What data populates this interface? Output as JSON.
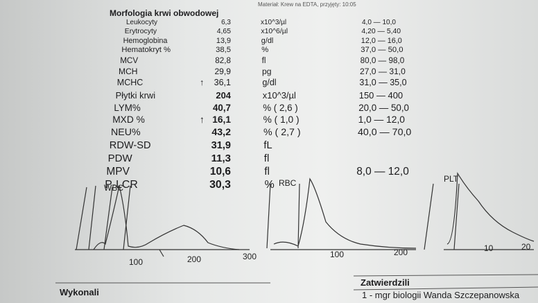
{
  "header": {
    "note": "Materiał: Krew na EDTA, przyjęty: 10:05",
    "title": "Morfologia krwi obwodowej"
  },
  "table": {
    "rows": [
      [
        "Leukocyty",
        "",
        "6,3",
        "x10^3/µl",
        "4,0 — 10,0"
      ],
      [
        "Erytrocyty",
        "",
        "4,65",
        "x10^6/µl",
        "4,20 — 5,40"
      ],
      [
        "Hemoglobina",
        "",
        "13,9",
        "g/dl",
        "12,0 — 16,0"
      ],
      [
        "Hematokryt %",
        "",
        "38,5",
        "%",
        "37,0 — 50,0"
      ],
      [
        "MCV",
        "",
        "82,8",
        "fl",
        "80,0 — 98,0"
      ],
      [
        "MCH",
        "",
        "29,9",
        "pg",
        "27,0 — 31,0"
      ],
      [
        "MCHC",
        "↑",
        "36,1",
        "g/dl",
        "31,0 — 35,0"
      ],
      [
        "Płytki krwi",
        "",
        "204",
        "x10^3/µl",
        "150 — 400"
      ],
      [
        "LYM%",
        "",
        "40,7",
        "% ( 2,6 )",
        "20,0 — 50,0"
      ],
      [
        "MXD %",
        "↑",
        "16,1",
        "% ( 1,0 )",
        "1,0 — 12,0"
      ],
      [
        "NEU%",
        "",
        "43,2",
        "% ( 2,7 )",
        "40,0 — 70,0"
      ],
      [
        "RDW-SD",
        "",
        "31,9",
        "fL",
        ""
      ],
      [
        "PDW",
        "",
        "11,3",
        "fl",
        ""
      ],
      [
        "MPV",
        "",
        "10,6",
        "fl",
        "8,0 — 12,0"
      ],
      [
        "P-LCR",
        "",
        "30,3",
        "%",
        ""
      ]
    ]
  },
  "histograms": [
    {
      "label": "WBC",
      "ticks": [
        "100",
        "200",
        "300"
      ]
    },
    {
      "label": "RBC",
      "ticks": [
        "100",
        "200"
      ]
    },
    {
      "label": "PLT",
      "ticks": [
        "10",
        "20"
      ]
    }
  ],
  "footer": {
    "left": "Wykonali",
    "right": "Zatwierdzili",
    "signature": "1 - mgr biologii Wanda Szczepanowska"
  }
}
